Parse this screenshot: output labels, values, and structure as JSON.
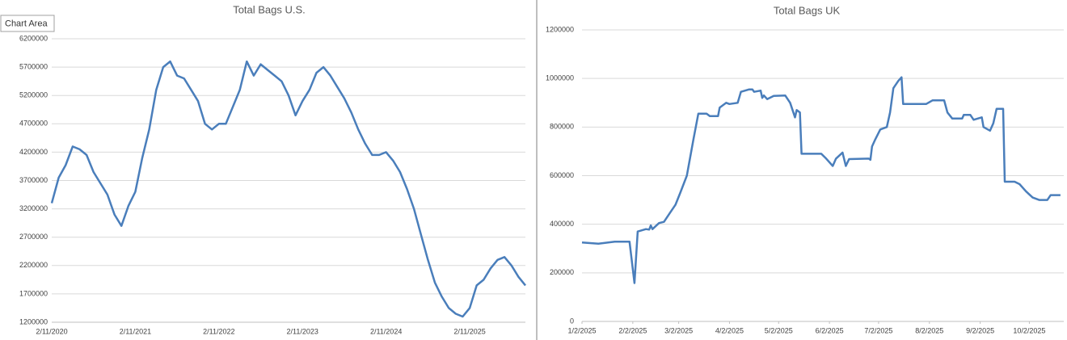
{
  "tooltip": "Chart Area",
  "chart_data": [
    {
      "type": "line",
      "title": "Total Bags U.S.",
      "categories": [
        "2/11/2020",
        null,
        null,
        null,
        null,
        null,
        null,
        null,
        null,
        null,
        null,
        null,
        "2/11/2021",
        null,
        null,
        null,
        null,
        null,
        null,
        null,
        null,
        null,
        null,
        null,
        "2/11/2022",
        null,
        null,
        null,
        null,
        null,
        null,
        null,
        null,
        null,
        null,
        null,
        "2/11/2023",
        null,
        null,
        null,
        null,
        null,
        null,
        null,
        null,
        null,
        null,
        null,
        "2/11/2024",
        null,
        null,
        null,
        null,
        null,
        null,
        null,
        null,
        null,
        null,
        null,
        "2/11/2025",
        null,
        null,
        null,
        null,
        null,
        null,
        null,
        null
      ],
      "series": [
        {
          "name": "Total Bags",
          "color": "#4a7ebb",
          "values": [
            3300000,
            3750000,
            3970000,
            4300000,
            4250000,
            4150000,
            3850000,
            3650000,
            3450000,
            3100000,
            2900000,
            3250000,
            3500000,
            4100000,
            4600000,
            5300000,
            5700000,
            5800000,
            5550000,
            5500000,
            5300000,
            5100000,
            4700000,
            4600000,
            4700000,
            4700000,
            5000000,
            5300000,
            5800000,
            5550000,
            5750000,
            5650000,
            5550000,
            5450000,
            5200000,
            4850000,
            5100000,
            5300000,
            5600000,
            5700000,
            5550000,
            5350000,
            5150000,
            4900000,
            4600000,
            4350000,
            4150000,
            4150000,
            4200000,
            4050000,
            3850000,
            3550000,
            3200000,
            2750000,
            2300000,
            1900000,
            1650000,
            1450000,
            1350000,
            1300000,
            1450000,
            1850000,
            1950000,
            2150000,
            2300000,
            2350000,
            2200000,
            2000000,
            1850000
          ]
        }
      ],
      "ylim": [
        1200000,
        6200000
      ],
      "yticks": [
        1200000,
        1700000,
        2200000,
        2700000,
        3200000,
        3700000,
        4200000,
        4700000,
        5200000,
        5700000,
        6200000
      ],
      "grid": true
    },
    {
      "type": "line",
      "title": "Total Bags UK",
      "x": [
        0,
        10,
        20,
        29,
        32,
        34,
        39,
        41,
        42,
        43,
        47,
        50,
        54,
        57,
        60,
        64,
        68,
        71,
        76,
        78,
        83,
        84,
        88,
        90,
        95,
        97,
        102,
        104,
        105,
        109,
        110,
        111,
        113,
        117,
        124,
        127,
        130,
        131,
        133,
        134,
        146,
        149,
        153,
        155,
        159,
        161,
        163,
        175,
        176,
        177,
        179,
        182,
        186,
        188,
        190,
        193,
        195,
        196,
        210,
        214,
        221,
        223,
        226,
        232,
        233,
        237,
        239,
        244,
        245,
        249,
        251,
        253,
        257,
        258,
        264,
        267,
        271,
        275,
        279,
        284,
        286,
        292
      ],
      "series": [
        {
          "name": "Total Bags",
          "color": "#4a7ebb",
          "values": [
            325000,
            320000,
            328000,
            328000,
            158000,
            370000,
            380000,
            378000,
            395000,
            380000,
            405000,
            410000,
            450000,
            480000,
            530000,
            600000,
            750000,
            855000,
            855000,
            845000,
            845000,
            880000,
            900000,
            895000,
            900000,
            945000,
            955000,
            955000,
            945000,
            950000,
            920000,
            930000,
            915000,
            928000,
            930000,
            900000,
            840000,
            870000,
            860000,
            690000,
            690000,
            670000,
            640000,
            670000,
            695000,
            640000,
            668000,
            670000,
            665000,
            720000,
            750000,
            790000,
            800000,
            860000,
            960000,
            990000,
            1005000,
            895000,
            895000,
            910000,
            910000,
            860000,
            835000,
            835000,
            850000,
            850000,
            830000,
            840000,
            800000,
            785000,
            815000,
            875000,
            875000,
            575000,
            575000,
            565000,
            535000,
            510000,
            500000,
            500000,
            520000,
            520000
          ]
        }
      ],
      "xlim": [
        0,
        294
      ],
      "xticks": [
        {
          "value": 0,
          "label": "1/2/2025"
        },
        {
          "value": 31,
          "label": "2/2/2025"
        },
        {
          "value": 59,
          "label": "3/2/2025"
        },
        {
          "value": 90,
          "label": "4/2/2025"
        },
        {
          "value": 120,
          "label": "5/2/2025"
        },
        {
          "value": 151,
          "label": "6/2/2025"
        },
        {
          "value": 181,
          "label": "7/2/2025"
        },
        {
          "value": 212,
          "label": "8/2/2025"
        },
        {
          "value": 243,
          "label": "9/2/2025"
        },
        {
          "value": 273,
          "label": "10/2/2025"
        }
      ],
      "ylim": [
        0,
        1200000
      ],
      "yticks": [
        0,
        200000,
        400000,
        600000,
        800000,
        1000000,
        1200000
      ],
      "grid": true
    }
  ]
}
